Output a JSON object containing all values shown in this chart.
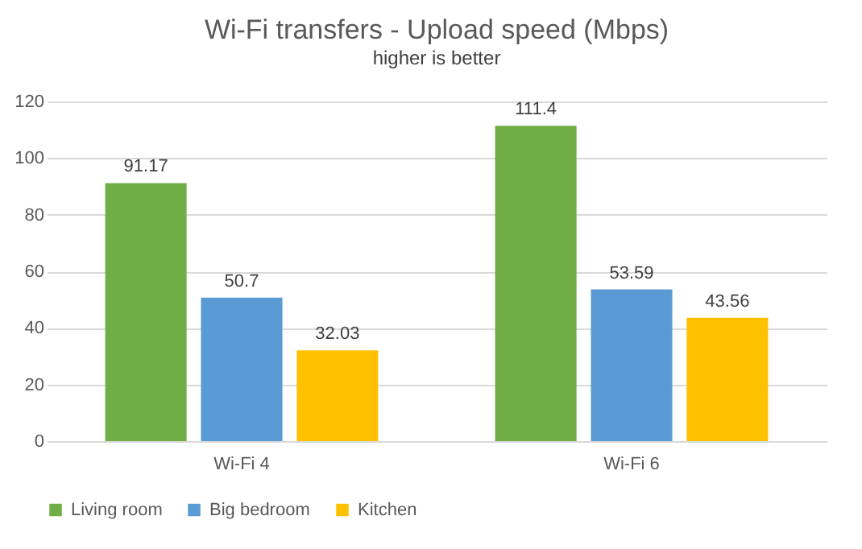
{
  "chart_data": {
    "type": "bar",
    "title": "Wi-Fi transfers - Upload speed (Mbps)",
    "subtitle": "higher is better",
    "categories": [
      "Wi-Fi 4",
      "Wi-Fi 6"
    ],
    "series": [
      {
        "name": "Living room",
        "color": "#70ad47",
        "values": [
          91.17,
          111.4
        ]
      },
      {
        "name": "Big bedroom",
        "color": "#5b9bd5",
        "values": [
          50.7,
          53.59
        ]
      },
      {
        "name": "Kitchen",
        "color": "#ffc000",
        "values": [
          32.03,
          43.56
        ]
      }
    ],
    "ylim": [
      0,
      120
    ],
    "yticks": [
      0,
      20,
      40,
      60,
      80,
      100,
      120
    ],
    "grid": "y",
    "legend": "bottom",
    "data_labels": true
  }
}
